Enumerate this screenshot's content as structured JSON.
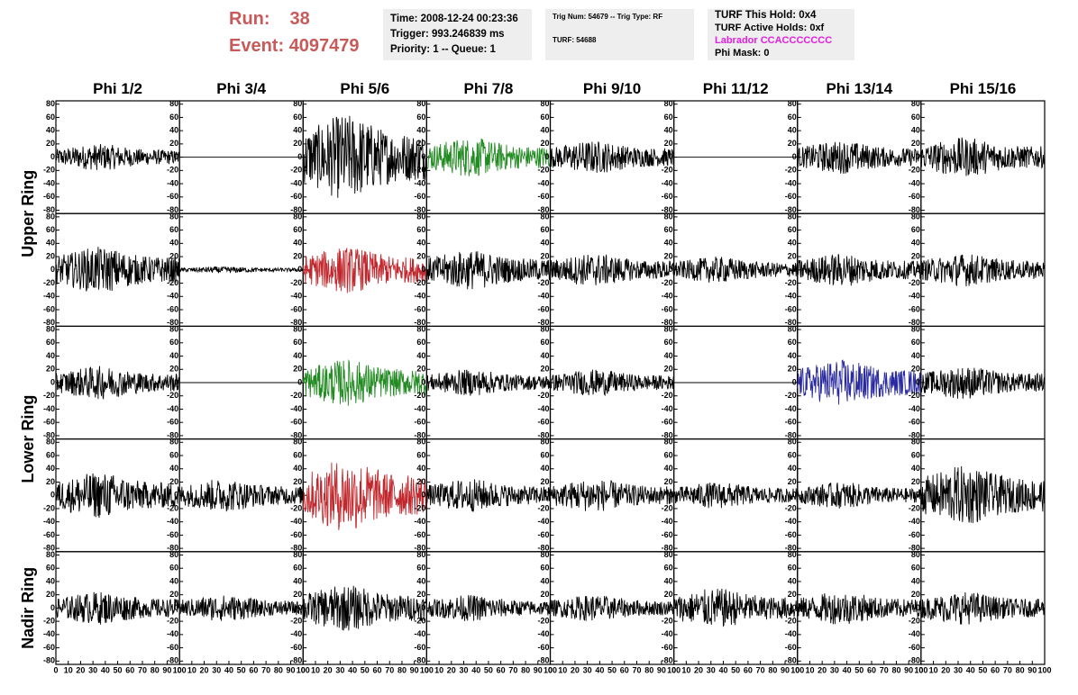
{
  "header": {
    "run_label": "Run:",
    "run": "38",
    "event_label": "Event:",
    "event": "4097479"
  },
  "info": [
    [
      "Time: 2008-12-24 00:23:36",
      "Trigger: 993.246839 ms",
      "Priority: 1 -- Queue: 1"
    ],
    [
      "Trig Num: 54679 -- Trig Type: RF",
      "TURF: 54688"
    ],
    [
      "TURF This Hold: 0x4",
      "TURF Active Holds: 0xf",
      "Labrador CCACCCCCCC",
      "Phi Mask: 0"
    ]
  ],
  "columns": [
    "Phi 1/2",
    "Phi 3/4",
    "Phi 5/6",
    "Phi 7/8",
    "Phi 9/10",
    "Phi 11/12",
    "Phi 13/14",
    "Phi 15/16"
  ],
  "row_labels": [
    "Upper Ring",
    "Lower Ring",
    "Nadir Ring"
  ],
  "ylim": [
    -85,
    85
  ],
  "xlim": [
    0,
    100
  ],
  "yticks": [
    -80,
    -60,
    -40,
    -20,
    0,
    20,
    40,
    60,
    80
  ],
  "xticks": [
    0,
    10,
    20,
    30,
    40,
    50,
    60,
    70,
    80,
    90,
    100
  ],
  "panels": [
    [
      {
        "color": "#000000",
        "amplitude": 20
      },
      {
        "color": "#000000",
        "amplitude": 0
      },
      {
        "color": "#000000",
        "amplitude": 65
      },
      {
        "color": "#228b22",
        "amplitude": 30
      },
      {
        "color": "#000000",
        "amplitude": 25
      },
      {
        "color": "#000000",
        "amplitude": 0
      },
      {
        "color": "#000000",
        "amplitude": 25
      },
      {
        "color": "#000000",
        "amplitude": 30
      }
    ],
    [
      {
        "color": "#000000",
        "amplitude": 35
      },
      {
        "color": "#000000",
        "amplitude": 5
      },
      {
        "color": "#c0282d",
        "amplitude": 35
      },
      {
        "color": "#000000",
        "amplitude": 30
      },
      {
        "color": "#000000",
        "amplitude": 25
      },
      {
        "color": "#000000",
        "amplitude": 20
      },
      {
        "color": "#000000",
        "amplitude": 25
      },
      {
        "color": "#000000",
        "amplitude": 25
      }
    ],
    [
      {
        "color": "#000000",
        "amplitude": 25
      },
      {
        "color": "#000000",
        "amplitude": 0
      },
      {
        "color": "#228b22",
        "amplitude": 35
      },
      {
        "color": "#000000",
        "amplitude": 20
      },
      {
        "color": "#000000",
        "amplitude": 20
      },
      {
        "color": "#000000",
        "amplitude": 0
      },
      {
        "color": "#2a2aa0",
        "amplitude": 35
      },
      {
        "color": "#000000",
        "amplitude": 25
      }
    ],
    [
      {
        "color": "#000000",
        "amplitude": 35
      },
      {
        "color": "#000000",
        "amplitude": 25
      },
      {
        "color": "#c0282d",
        "amplitude": 55
      },
      {
        "color": "#000000",
        "amplitude": 25
      },
      {
        "color": "#000000",
        "amplitude": 25
      },
      {
        "color": "#000000",
        "amplitude": 20
      },
      {
        "color": "#000000",
        "amplitude": 20
      },
      {
        "color": "#000000",
        "amplitude": 45
      }
    ],
    [
      {
        "color": "#000000",
        "amplitude": 25
      },
      {
        "color": "#000000",
        "amplitude": 20
      },
      {
        "color": "#000000",
        "amplitude": 35
      },
      {
        "color": "#000000",
        "amplitude": 20
      },
      {
        "color": "#000000",
        "amplitude": 20
      },
      {
        "color": "#000000",
        "amplitude": 30
      },
      {
        "color": "#000000",
        "amplitude": 25
      },
      {
        "color": "#000000",
        "amplitude": 25
      }
    ]
  ]
}
